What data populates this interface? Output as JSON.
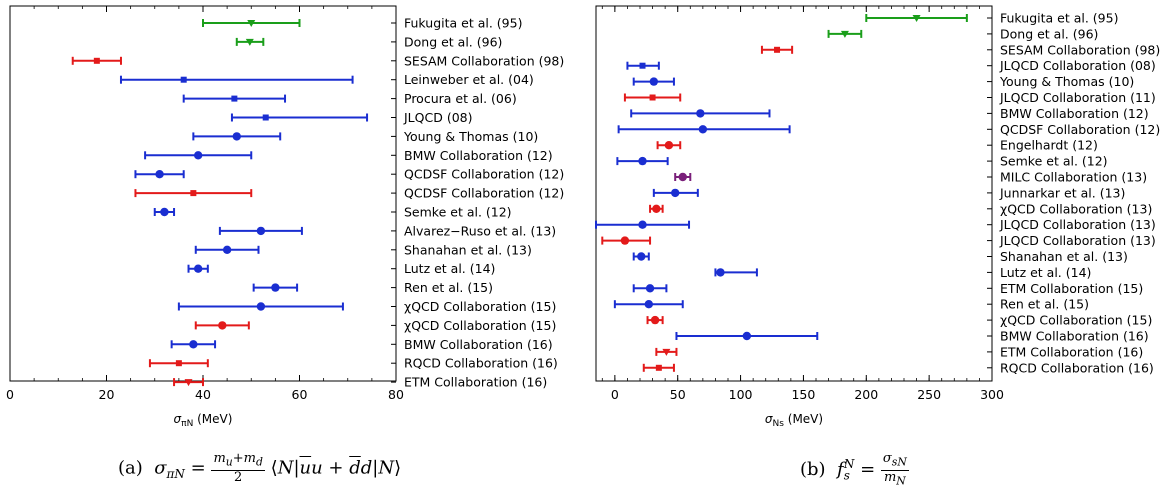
{
  "chart_data": [
    {
      "type": "errorbar",
      "xlabel": "σπN (MeV)",
      "xlim": [
        0,
        80
      ],
      "xticks": [
        0,
        20,
        40,
        60,
        80
      ],
      "caption": "(a) σπN = (mu+md)/2 ⟨N|ūu + d̄d|N⟩",
      "points": [
        {
          "label": "Fukugita et al. (95)",
          "value": 50,
          "low": 40,
          "high": 60,
          "color": "#1a9e1a",
          "marker": "triangle"
        },
        {
          "label": "Dong et al. (96)",
          "value": 49.7,
          "low": 47,
          "high": 52.5,
          "color": "#1a9e1a",
          "marker": "triangle"
        },
        {
          "label": "SESAM Collaboration (98)",
          "value": 18,
          "low": 13,
          "high": 23,
          "color": "#e31a1a",
          "marker": "square"
        },
        {
          "label": "Leinweber et al. (04)",
          "value": 36,
          "low": 23,
          "high": 71,
          "color": "#1a2ed1",
          "marker": "square"
        },
        {
          "label": "Procura et al. (06)",
          "value": 46.5,
          "low": 36,
          "high": 57,
          "color": "#1a2ed1",
          "marker": "square"
        },
        {
          "label": "JLQCD (08)",
          "value": 53,
          "low": 46,
          "high": 74,
          "color": "#1a2ed1",
          "marker": "square"
        },
        {
          "label": "Young & Thomas (10)",
          "value": 47,
          "low": 38,
          "high": 56,
          "color": "#1a2ed1",
          "marker": "circle"
        },
        {
          "label": "BMW Collaboration (12)",
          "value": 39,
          "low": 28,
          "high": 50,
          "color": "#1a2ed1",
          "marker": "circle"
        },
        {
          "label": "QCDSF Collaboration (12)",
          "value": 31,
          "low": 26,
          "high": 36,
          "color": "#1a2ed1",
          "marker": "circle"
        },
        {
          "label": "QCDSF Collaboration (12)",
          "value": 38,
          "low": 26,
          "high": 50,
          "color": "#e31a1a",
          "marker": "square"
        },
        {
          "label": "Semke et al. (12)",
          "value": 32,
          "low": 30,
          "high": 34,
          "color": "#1a2ed1",
          "marker": "circle"
        },
        {
          "label": "Alvarez−Ruso et al. (13)",
          "value": 52,
          "low": 43.5,
          "high": 60.5,
          "color": "#1a2ed1",
          "marker": "circle"
        },
        {
          "label": "Shanahan et al. (13)",
          "value": 45,
          "low": 38.5,
          "high": 51.5,
          "color": "#1a2ed1",
          "marker": "circle"
        },
        {
          "label": "Lutz et al. (14)",
          "value": 39,
          "low": 37,
          "high": 41,
          "color": "#1a2ed1",
          "marker": "circle"
        },
        {
          "label": "Ren et al. (15)",
          "value": 55,
          "low": 50.5,
          "high": 59.5,
          "color": "#1a2ed1",
          "marker": "circle"
        },
        {
          "label": "χQCD Collaboration (15)",
          "value": 52,
          "low": 35,
          "high": 69,
          "color": "#1a2ed1",
          "marker": "circle"
        },
        {
          "label": "χQCD Collaboration (15)",
          "value": 44,
          "low": 38.5,
          "high": 49.5,
          "color": "#e31a1a",
          "marker": "circle"
        },
        {
          "label": "BMW Collaboration (16)",
          "value": 38,
          "low": 33.5,
          "high": 42.5,
          "color": "#1a2ed1",
          "marker": "circle"
        },
        {
          "label": "RQCD Collaboration (16)",
          "value": 35,
          "low": 29,
          "high": 41,
          "color": "#e31a1a",
          "marker": "square"
        },
        {
          "label": "ETM Collaboration (16)",
          "value": 37,
          "low": 34,
          "high": 40,
          "color": "#e31a1a",
          "marker": "triangle"
        }
      ]
    },
    {
      "type": "errorbar",
      "xlabel": "σNs (MeV)",
      "xlim": [
        -15,
        300
      ],
      "xticks": [
        0,
        50,
        100,
        150,
        200,
        250,
        300
      ],
      "caption": "(b) fsN = σsN / mN",
      "points": [
        {
          "label": "Fukugita et al. (95)",
          "value": 240,
          "low": 200,
          "high": 280,
          "color": "#1a9e1a",
          "marker": "triangle"
        },
        {
          "label": "Dong et al. (96)",
          "value": 183,
          "low": 170,
          "high": 196,
          "color": "#1a9e1a",
          "marker": "triangle"
        },
        {
          "label": "SESAM Collaboration (98)",
          "value": 129,
          "low": 117,
          "high": 141,
          "color": "#e31a1a",
          "marker": "square"
        },
        {
          "label": "JLQCD Collaboration (08)",
          "value": 22,
          "low": 10,
          "high": 35,
          "color": "#1a2ed1",
          "marker": "square"
        },
        {
          "label": "Young & Thomas (10)",
          "value": 31,
          "low": 15,
          "high": 47,
          "color": "#1a2ed1",
          "marker": "circle"
        },
        {
          "label": "JLQCD Collaboration (11)",
          "value": 30,
          "low": 8,
          "high": 52,
          "color": "#e31a1a",
          "marker": "square"
        },
        {
          "label": "BMW Collaboration (12)",
          "value": 68,
          "low": 13,
          "high": 123,
          "color": "#1a2ed1",
          "marker": "circle"
        },
        {
          "label": "QCDSF Collaboration (12)",
          "value": 70,
          "low": 3,
          "high": 139,
          "color": "#1a2ed1",
          "marker": "circle"
        },
        {
          "label": "Engelhardt (12)",
          "value": 43,
          "low": 34,
          "high": 52,
          "color": "#e31a1a",
          "marker": "circle"
        },
        {
          "label": "Semke et al. (12)",
          "value": 22,
          "low": 2,
          "high": 42,
          "color": "#1a2ed1",
          "marker": "circle"
        },
        {
          "label": "MILC Collaboration (13)",
          "value": 54,
          "low": 48,
          "high": 60,
          "color": "#7a1f7a",
          "marker": "circle"
        },
        {
          "label": "Junnarkar et al. (13)",
          "value": 48,
          "low": 31,
          "high": 66,
          "color": "#1a2ed1",
          "marker": "circle"
        },
        {
          "label": "χQCD Collaboration (13)",
          "value": 33,
          "low": 28,
          "high": 38,
          "color": "#e31a1a",
          "marker": "circle"
        },
        {
          "label": "JLQCD Collaboration (13)",
          "value": 22,
          "low": -15,
          "high": 59,
          "color": "#1a2ed1",
          "marker": "circle"
        },
        {
          "label": "JLQCD Collaboration (13)",
          "value": 8,
          "low": -10,
          "high": 28,
          "color": "#e31a1a",
          "marker": "circle"
        },
        {
          "label": "Shanahan et al. (13)",
          "value": 21,
          "low": 15,
          "high": 27,
          "color": "#1a2ed1",
          "marker": "circle"
        },
        {
          "label": "Lutz et al. (14)",
          "value": 84,
          "low": 80,
          "high": 113,
          "color": "#1a2ed1",
          "marker": "circle"
        },
        {
          "label": "ETM Collaboration (15)",
          "value": 28,
          "low": 15,
          "high": 41,
          "color": "#1a2ed1",
          "marker": "circle"
        },
        {
          "label": "Ren et al. (15)",
          "value": 27,
          "low": 0,
          "high": 54,
          "color": "#1a2ed1",
          "marker": "circle"
        },
        {
          "label": "χQCD Collaboration (15)",
          "value": 32,
          "low": 26,
          "high": 38,
          "color": "#e31a1a",
          "marker": "circle"
        },
        {
          "label": "BMW Collaboration (16)",
          "value": 105,
          "low": 49,
          "high": 161,
          "color": "#1a2ed1",
          "marker": "circle"
        },
        {
          "label": "ETM Collaboration (16)",
          "value": 41,
          "low": 33,
          "high": 49,
          "color": "#e31a1a",
          "marker": "triangle"
        },
        {
          "label": "RQCD Collaboration (16)",
          "value": 35,
          "low": 23,
          "high": 47,
          "color": "#e31a1a",
          "marker": "square"
        }
      ]
    }
  ]
}
